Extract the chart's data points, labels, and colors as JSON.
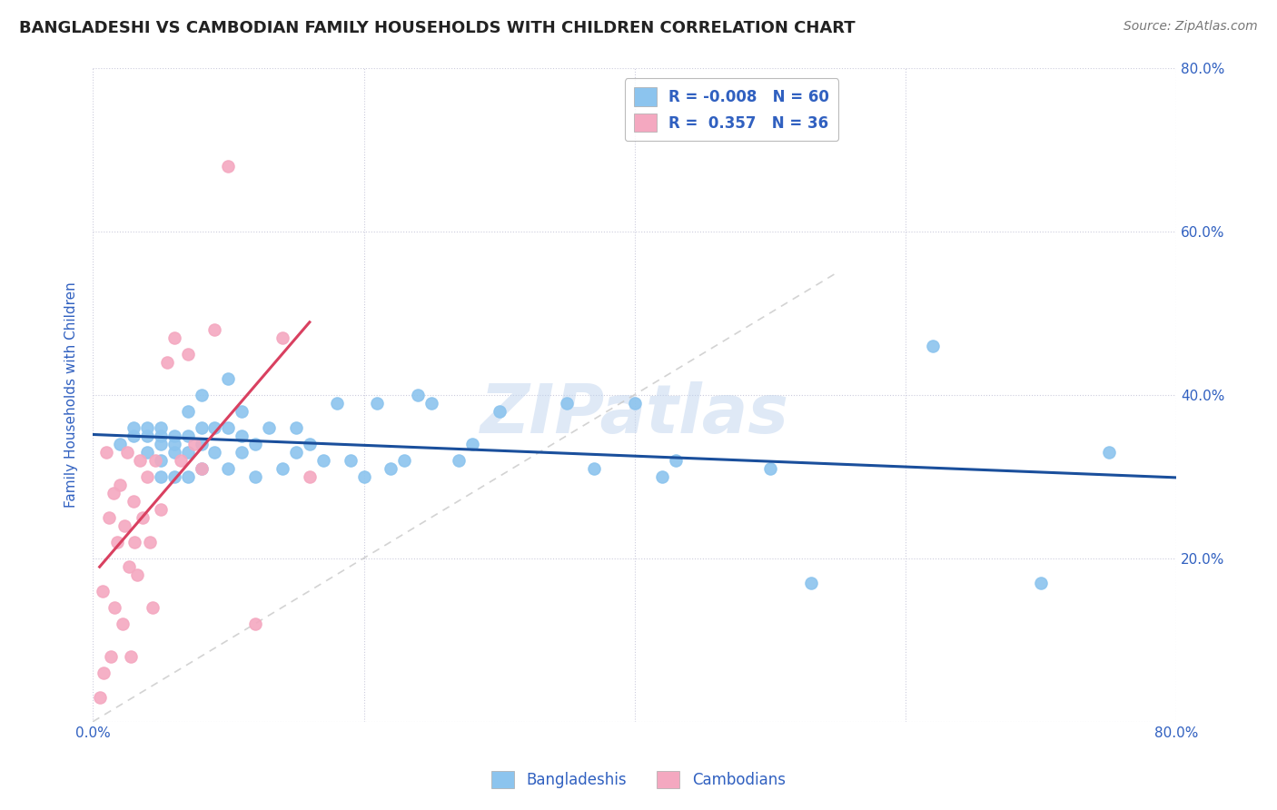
{
  "title": "BANGLADESHI VS CAMBODIAN FAMILY HOUSEHOLDS WITH CHILDREN CORRELATION CHART",
  "source": "Source: ZipAtlas.com",
  "ylabel": "Family Households with Children",
  "legend_labels": [
    "Bangladeshis",
    "Cambodians"
  ],
  "legend_r_bangladeshi": "-0.008",
  "legend_n_bangladeshi": "60",
  "legend_r_cambodian": "0.357",
  "legend_n_cambodian": "36",
  "xlim": [
    0.0,
    0.8
  ],
  "ylim": [
    0.0,
    0.8
  ],
  "watermark": "ZIPatlas",
  "color_bangladeshi": "#8CC4EE",
  "color_cambodian": "#F4A8C0",
  "line_color_bangladeshi": "#1A4F9C",
  "line_color_cambodian": "#D94060",
  "diagonal_color": "#C8C8C8",
  "background_color": "#FFFFFF",
  "grid_color": "#CCCCDD",
  "bangladeshi_x": [
    0.02,
    0.03,
    0.03,
    0.04,
    0.04,
    0.04,
    0.05,
    0.05,
    0.05,
    0.05,
    0.05,
    0.06,
    0.06,
    0.06,
    0.06,
    0.07,
    0.07,
    0.07,
    0.07,
    0.08,
    0.08,
    0.08,
    0.08,
    0.09,
    0.09,
    0.1,
    0.1,
    0.1,
    0.11,
    0.11,
    0.11,
    0.12,
    0.12,
    0.13,
    0.14,
    0.15,
    0.15,
    0.16,
    0.17,
    0.18,
    0.19,
    0.2,
    0.21,
    0.22,
    0.23,
    0.24,
    0.25,
    0.27,
    0.28,
    0.3,
    0.35,
    0.37,
    0.4,
    0.42,
    0.43,
    0.5,
    0.53,
    0.62,
    0.7,
    0.75
  ],
  "bangladeshi_y": [
    0.34,
    0.35,
    0.36,
    0.33,
    0.35,
    0.36,
    0.3,
    0.32,
    0.34,
    0.35,
    0.36,
    0.3,
    0.33,
    0.34,
    0.35,
    0.3,
    0.33,
    0.35,
    0.38,
    0.31,
    0.34,
    0.36,
    0.4,
    0.33,
    0.36,
    0.31,
    0.36,
    0.42,
    0.33,
    0.35,
    0.38,
    0.3,
    0.34,
    0.36,
    0.31,
    0.33,
    0.36,
    0.34,
    0.32,
    0.39,
    0.32,
    0.3,
    0.39,
    0.31,
    0.32,
    0.4,
    0.39,
    0.32,
    0.34,
    0.38,
    0.39,
    0.31,
    0.39,
    0.3,
    0.32,
    0.31,
    0.17,
    0.46,
    0.17,
    0.33
  ],
  "cambodian_x": [
    0.005,
    0.007,
    0.008,
    0.01,
    0.012,
    0.013,
    0.015,
    0.016,
    0.018,
    0.02,
    0.022,
    0.023,
    0.025,
    0.027,
    0.028,
    0.03,
    0.031,
    0.033,
    0.035,
    0.037,
    0.04,
    0.042,
    0.044,
    0.046,
    0.05,
    0.055,
    0.06,
    0.065,
    0.07,
    0.075,
    0.08,
    0.09,
    0.1,
    0.12,
    0.14,
    0.16
  ],
  "cambodian_y": [
    0.03,
    0.16,
    0.06,
    0.33,
    0.25,
    0.08,
    0.28,
    0.14,
    0.22,
    0.29,
    0.12,
    0.24,
    0.33,
    0.19,
    0.08,
    0.27,
    0.22,
    0.18,
    0.32,
    0.25,
    0.3,
    0.22,
    0.14,
    0.32,
    0.26,
    0.44,
    0.47,
    0.32,
    0.45,
    0.34,
    0.31,
    0.48,
    0.68,
    0.12,
    0.47,
    0.3
  ]
}
